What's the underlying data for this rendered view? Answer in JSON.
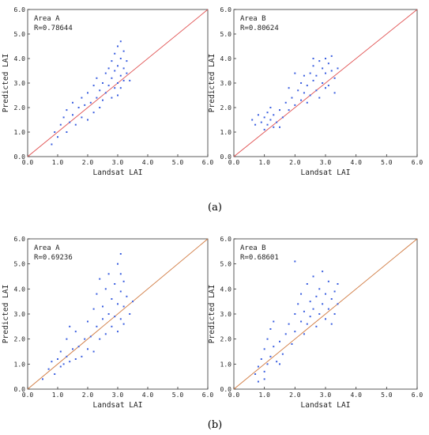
{
  "captions": [
    "(a)",
    "(b)"
  ],
  "chart_data": [
    {
      "type": "scatter",
      "annotation": [
        "Area A",
        "R=0.78644"
      ],
      "xlabel": "Landsat LAI",
      "ylabel": "Predicted LAI",
      "xlim": [
        0,
        6
      ],
      "ylim": [
        0,
        6
      ],
      "xticks": [
        "0.0",
        "1.0",
        "2.0",
        "3.0",
        "4.0",
        "5.0",
        "6.0"
      ],
      "yticks": [
        "0.0",
        "1.0",
        "2.0",
        "3.0",
        "4.0",
        "5.0",
        "6.0"
      ],
      "reference_line": "y = x",
      "point_color": "#3a5ee0",
      "line_color": "#e05050",
      "points": [
        [
          0.8,
          0.5
        ],
        [
          0.9,
          1.0
        ],
        [
          1.0,
          0.8
        ],
        [
          1.1,
          1.3
        ],
        [
          1.2,
          1.6
        ],
        [
          1.3,
          1.0
        ],
        [
          1.3,
          1.9
        ],
        [
          1.4,
          1.4
        ],
        [
          1.5,
          1.7
        ],
        [
          1.5,
          2.2
        ],
        [
          1.6,
          1.3
        ],
        [
          1.7,
          2.0
        ],
        [
          1.8,
          1.6
        ],
        [
          1.8,
          2.4
        ],
        [
          1.9,
          2.1
        ],
        [
          2.0,
          1.5
        ],
        [
          2.0,
          2.6
        ],
        [
          2.1,
          2.2
        ],
        [
          2.2,
          1.8
        ],
        [
          2.2,
          2.9
        ],
        [
          2.3,
          2.4
        ],
        [
          2.3,
          3.2
        ],
        [
          2.4,
          2.0
        ],
        [
          2.4,
          2.7
        ],
        [
          2.5,
          3.0
        ],
        [
          2.5,
          2.3
        ],
        [
          2.6,
          3.4
        ],
        [
          2.6,
          2.6
        ],
        [
          2.7,
          2.9
        ],
        [
          2.7,
          3.6
        ],
        [
          2.8,
          2.4
        ],
        [
          2.8,
          3.2
        ],
        [
          2.8,
          3.9
        ],
        [
          2.9,
          2.8
        ],
        [
          2.9,
          3.5
        ],
        [
          2.9,
          4.2
        ],
        [
          3.0,
          3.0
        ],
        [
          3.0,
          3.7
        ],
        [
          3.0,
          4.5
        ],
        [
          3.0,
          2.5
        ],
        [
          3.1,
          3.3
        ],
        [
          3.1,
          4.0
        ],
        [
          3.1,
          2.8
        ],
        [
          3.1,
          4.7
        ],
        [
          3.2,
          3.6
        ],
        [
          3.2,
          3.1
        ],
        [
          3.2,
          4.3
        ],
        [
          3.3,
          3.4
        ],
        [
          3.3,
          3.9
        ],
        [
          3.4,
          3.1
        ]
      ]
    },
    {
      "type": "scatter",
      "annotation": [
        "Area B",
        "R=0.80624"
      ],
      "xlabel": "Landsat LAI",
      "ylabel": "Predicted LAI",
      "xlim": [
        0,
        6
      ],
      "ylim": [
        0,
        6
      ],
      "xticks": [
        "0.0",
        "1.0",
        "2.0",
        "3.0",
        "4.0",
        "5.0",
        "6.0"
      ],
      "yticks": [
        "0.0",
        "1.0",
        "2.0",
        "3.0",
        "4.0",
        "5.0",
        "6.0"
      ],
      "reference_line": "y = x",
      "point_color": "#3a5ee0",
      "line_color": "#e05050",
      "points": [
        [
          0.6,
          1.5
        ],
        [
          0.7,
          1.3
        ],
        [
          0.8,
          1.7
        ],
        [
          0.9,
          1.4
        ],
        [
          1.0,
          1.6
        ],
        [
          1.0,
          1.1
        ],
        [
          1.1,
          1.8
        ],
        [
          1.1,
          1.3
        ],
        [
          1.2,
          1.5
        ],
        [
          1.2,
          2.0
        ],
        [
          1.3,
          1.2
        ],
        [
          1.3,
          1.7
        ],
        [
          1.4,
          1.4
        ],
        [
          1.5,
          1.9
        ],
        [
          1.6,
          1.6
        ],
        [
          1.7,
          2.2
        ],
        [
          1.8,
          1.9
        ],
        [
          1.9,
          2.4
        ],
        [
          2.0,
          2.1
        ],
        [
          2.1,
          2.7
        ],
        [
          2.2,
          2.3
        ],
        [
          2.2,
          3.0
        ],
        [
          2.3,
          2.6
        ],
        [
          2.3,
          3.3
        ],
        [
          2.4,
          2.2
        ],
        [
          2.4,
          2.9
        ],
        [
          2.5,
          3.4
        ],
        [
          2.5,
          2.5
        ],
        [
          2.6,
          3.1
        ],
        [
          2.6,
          3.7
        ],
        [
          2.7,
          2.7
        ],
        [
          2.7,
          3.3
        ],
        [
          2.8,
          3.9
        ],
        [
          2.8,
          2.4
        ],
        [
          2.9,
          3.0
        ],
        [
          2.9,
          3.6
        ],
        [
          3.0,
          4.0
        ],
        [
          3.0,
          2.8
        ],
        [
          3.0,
          3.4
        ],
        [
          3.1,
          3.8
        ],
        [
          3.1,
          2.9
        ],
        [
          3.2,
          3.5
        ],
        [
          3.2,
          4.1
        ],
        [
          3.3,
          3.2
        ],
        [
          3.3,
          2.6
        ],
        [
          3.4,
          3.6
        ],
        [
          2.0,
          3.4
        ],
        [
          1.8,
          2.8
        ],
        [
          2.6,
          4.0
        ],
        [
          1.5,
          1.2
        ]
      ]
    },
    {
      "type": "scatter",
      "annotation": [
        "Area A",
        "R=0.69236"
      ],
      "xlabel": "Landsat LAI",
      "ylabel": "Predicted LAI",
      "xlim": [
        0,
        6
      ],
      "ylim": [
        0,
        6
      ],
      "xticks": [
        "0.0",
        "1.0",
        "2.0",
        "3.0",
        "4.0",
        "5.0",
        "6.0"
      ],
      "yticks": [
        "0.0",
        "1.0",
        "2.0",
        "3.0",
        "4.0",
        "5.0",
        "6.0"
      ],
      "reference_line": "y = x",
      "point_color": "#3a5ee0",
      "line_color": "#d07a40",
      "points": [
        [
          0.5,
          0.4
        ],
        [
          0.7,
          0.8
        ],
        [
          0.8,
          1.1
        ],
        [
          0.9,
          0.6
        ],
        [
          1.0,
          1.2
        ],
        [
          1.1,
          0.9
        ],
        [
          1.1,
          1.5
        ],
        [
          1.2,
          1.0
        ],
        [
          1.3,
          1.3
        ],
        [
          1.3,
          2.0
        ],
        [
          1.4,
          1.1
        ],
        [
          1.5,
          1.6
        ],
        [
          1.6,
          1.2
        ],
        [
          1.6,
          2.3
        ],
        [
          1.7,
          1.7
        ],
        [
          1.8,
          1.3
        ],
        [
          1.9,
          2.0
        ],
        [
          2.0,
          1.6
        ],
        [
          2.0,
          2.7
        ],
        [
          2.1,
          2.1
        ],
        [
          2.2,
          1.5
        ],
        [
          2.2,
          3.2
        ],
        [
          2.3,
          2.5
        ],
        [
          2.3,
          3.8
        ],
        [
          2.4,
          2.0
        ],
        [
          2.4,
          4.4
        ],
        [
          2.5,
          2.8
        ],
        [
          2.5,
          3.3
        ],
        [
          2.6,
          2.2
        ],
        [
          2.6,
          4.0
        ],
        [
          2.7,
          3.0
        ],
        [
          2.7,
          4.6
        ],
        [
          2.8,
          2.5
        ],
        [
          2.8,
          3.6
        ],
        [
          2.9,
          4.2
        ],
        [
          2.9,
          2.9
        ],
        [
          3.0,
          3.4
        ],
        [
          3.0,
          5.0
        ],
        [
          3.0,
          2.3
        ],
        [
          3.1,
          3.9
        ],
        [
          3.1,
          4.6
        ],
        [
          3.1,
          2.8
        ],
        [
          3.1,
          5.4
        ],
        [
          3.2,
          3.3
        ],
        [
          3.2,
          4.3
        ],
        [
          3.2,
          2.6
        ],
        [
          3.3,
          3.7
        ],
        [
          3.4,
          3.0
        ],
        [
          3.5,
          3.5
        ],
        [
          1.4,
          2.5
        ]
      ]
    },
    {
      "type": "scatter",
      "annotation": [
        "Area B",
        "R=0.68601"
      ],
      "xlabel": "Landsat LAI",
      "ylabel": "Predicted LAI",
      "xlim": [
        0,
        6
      ],
      "ylim": [
        0,
        6
      ],
      "xticks": [
        "0.0",
        "1.0",
        "2.0",
        "3.0",
        "4.0",
        "5.0",
        "6.0"
      ],
      "yticks": [
        "0.0",
        "1.0",
        "2.0",
        "3.0",
        "4.0",
        "5.0",
        "6.0"
      ],
      "reference_line": "y = x",
      "point_color": "#3a5ee0",
      "line_color": "#d07a40",
      "points": [
        [
          0.7,
          0.6
        ],
        [
          0.8,
          0.9
        ],
        [
          0.8,
          0.3
        ],
        [
          0.9,
          1.2
        ],
        [
          1.0,
          0.7
        ],
        [
          1.0,
          1.6
        ],
        [
          1.1,
          1.0
        ],
        [
          1.1,
          2.0
        ],
        [
          1.2,
          1.3
        ],
        [
          1.2,
          2.4
        ],
        [
          1.3,
          1.7
        ],
        [
          1.3,
          2.7
        ],
        [
          1.4,
          1.1
        ],
        [
          1.5,
          1.9
        ],
        [
          1.6,
          1.4
        ],
        [
          1.7,
          2.2
        ],
        [
          1.8,
          2.6
        ],
        [
          1.9,
          1.8
        ],
        [
          2.0,
          3.0
        ],
        [
          2.0,
          2.3
        ],
        [
          2.1,
          3.4
        ],
        [
          2.2,
          2.7
        ],
        [
          2.2,
          3.8
        ],
        [
          2.3,
          2.2
        ],
        [
          2.3,
          3.1
        ],
        [
          2.4,
          4.2
        ],
        [
          2.4,
          2.6
        ],
        [
          2.5,
          3.5
        ],
        [
          2.5,
          2.9
        ],
        [
          2.6,
          4.5
        ],
        [
          2.6,
          3.2
        ],
        [
          2.7,
          2.5
        ],
        [
          2.7,
          3.7
        ],
        [
          2.8,
          4.0
        ],
        [
          2.8,
          3.0
        ],
        [
          2.9,
          3.4
        ],
        [
          2.9,
          4.7
        ],
        [
          3.0,
          2.8
        ],
        [
          3.0,
          3.8
        ],
        [
          3.1,
          3.2
        ],
        [
          3.1,
          4.3
        ],
        [
          3.2,
          3.6
        ],
        [
          3.2,
          2.6
        ],
        [
          3.3,
          3.9
        ],
        [
          3.3,
          3.0
        ],
        [
          3.4,
          3.4
        ],
        [
          3.4,
          4.2
        ],
        [
          2.0,
          5.1
        ],
        [
          1.5,
          1.0
        ],
        [
          1.0,
          0.4
        ]
      ]
    }
  ]
}
